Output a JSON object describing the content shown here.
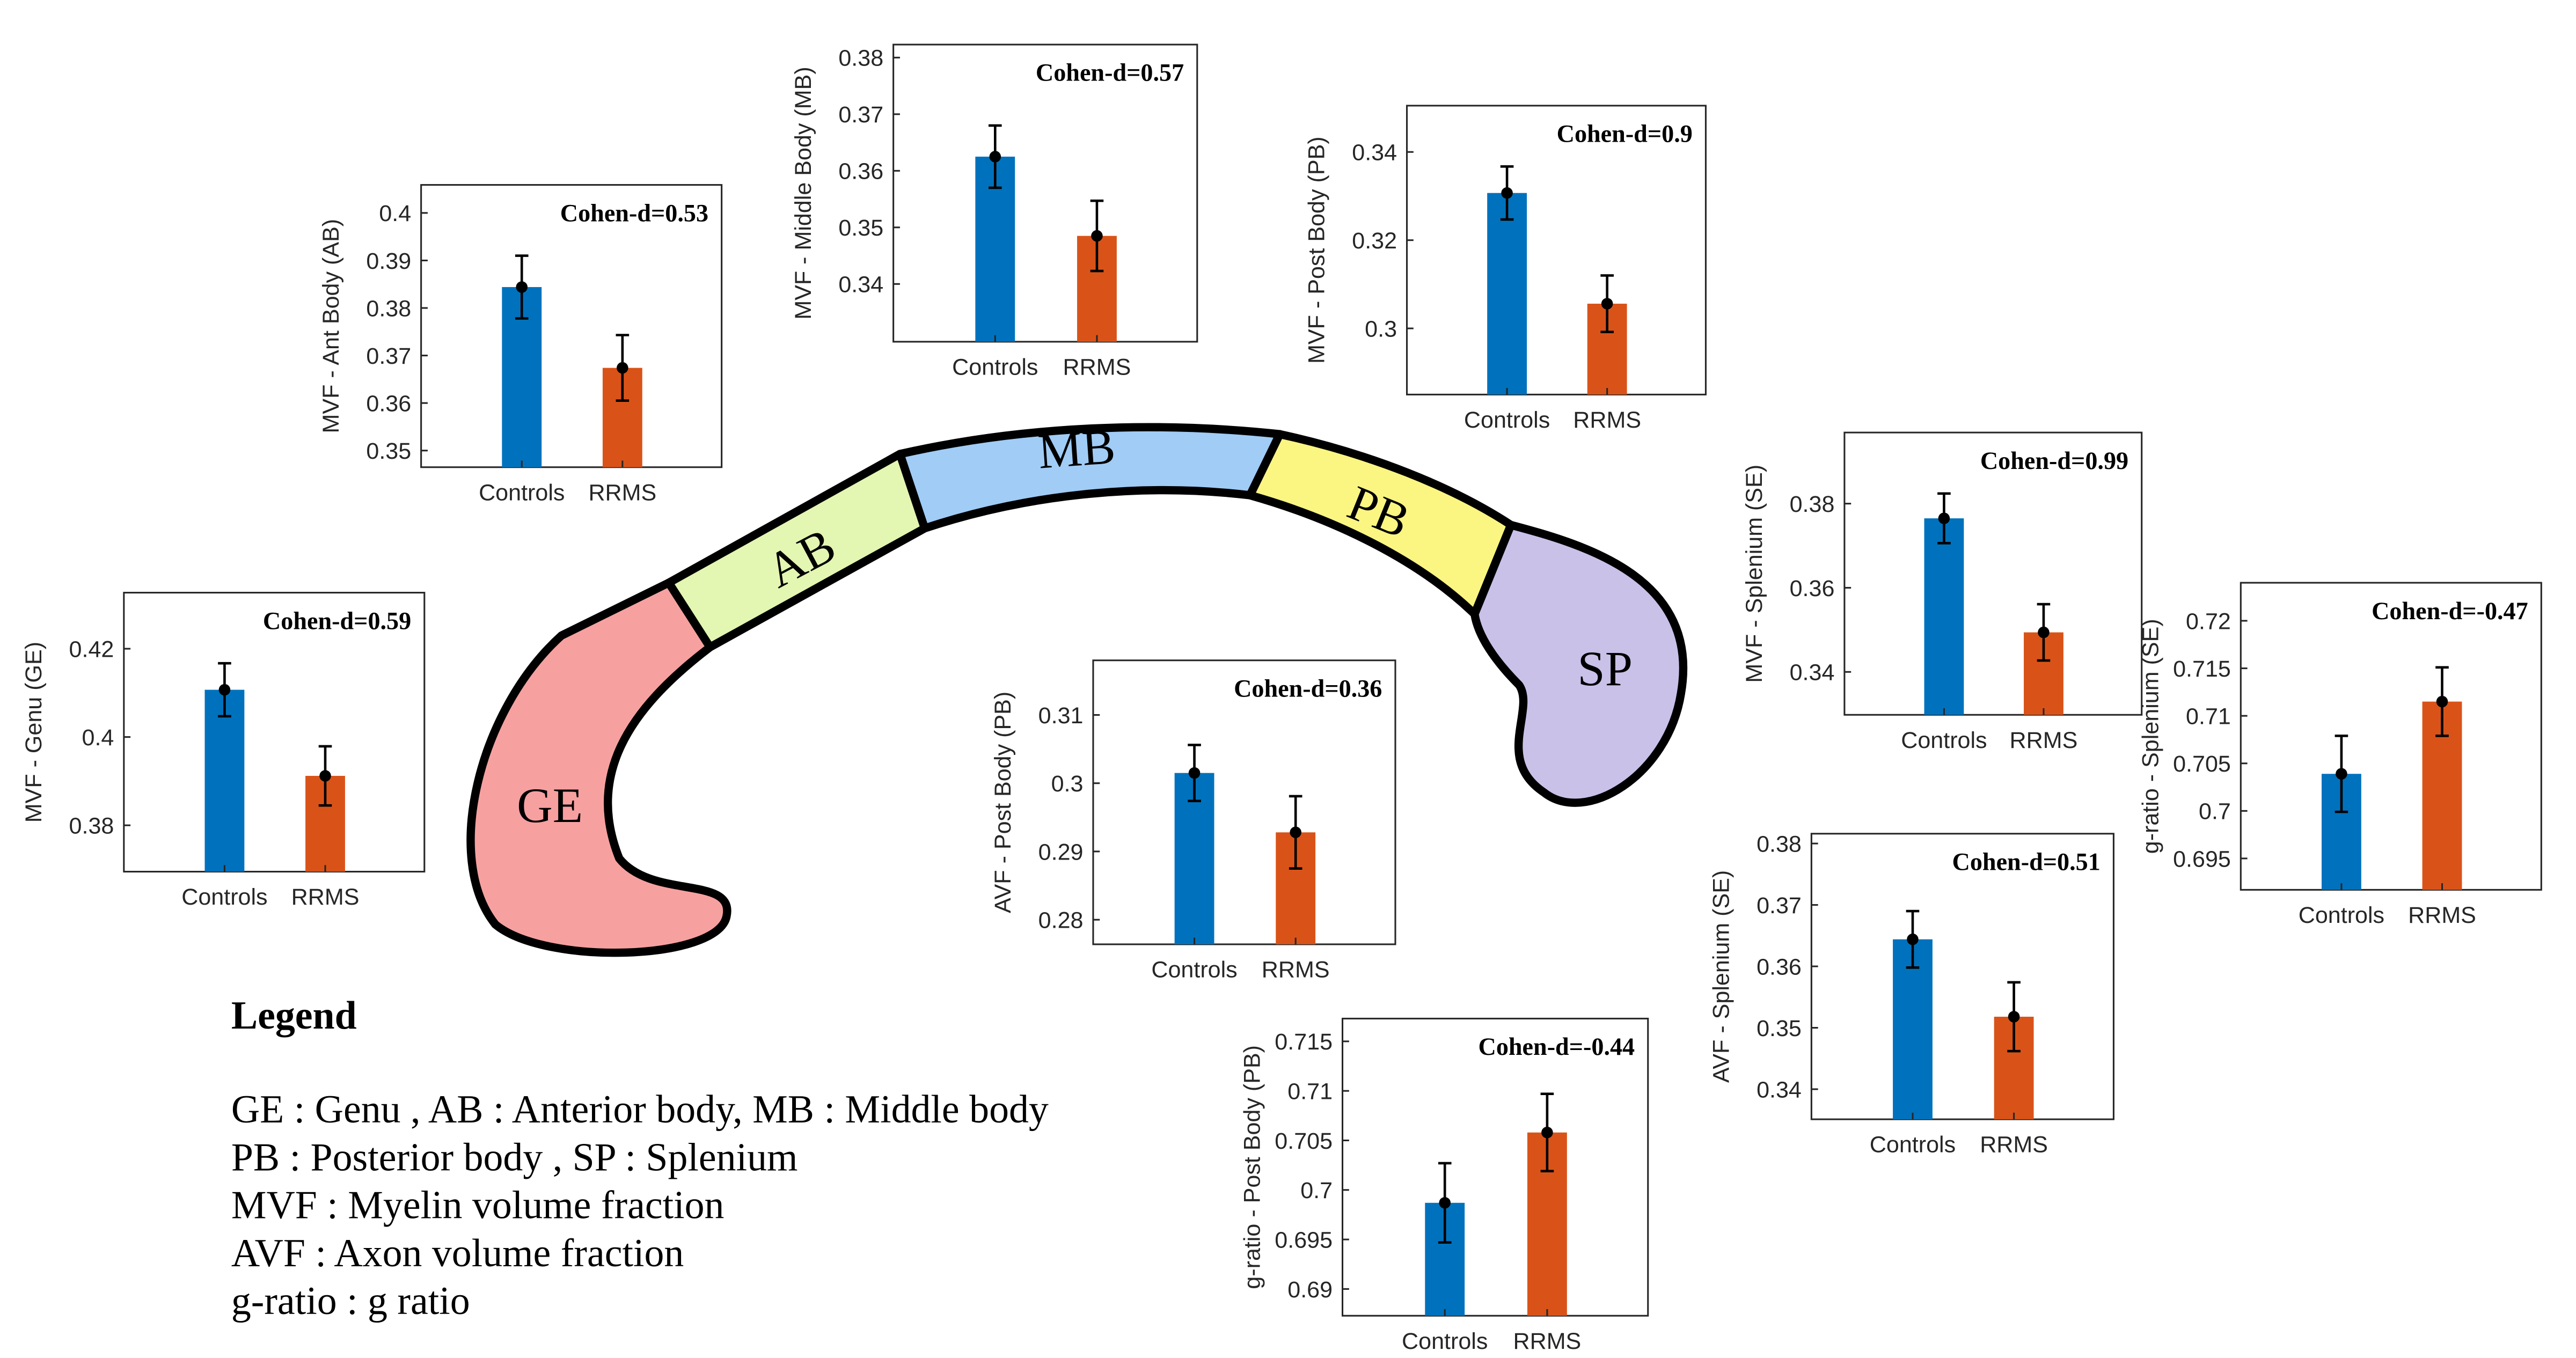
{
  "chart_data": [
    {
      "type": "bar",
      "ylabel": "MVF - Ant Body (AB)",
      "annotation": "Cohen-d=0.53",
      "categories": [
        "Controls",
        "RRMS"
      ],
      "values": [
        0.3844,
        0.3674
      ],
      "errors": [
        0.0066,
        0.0069
      ],
      "colors": [
        "#0072bd",
        "#d95319"
      ],
      "ylim": [
        0.3465,
        0.4059
      ],
      "yticks": [
        0.35,
        0.36,
        0.37,
        0.38,
        0.39,
        0.4
      ]
    },
    {
      "type": "bar",
      "ylabel": "MVF - Middle Body (MB)",
      "annotation": "Cohen-d=0.57",
      "categories": [
        "Controls",
        "RRMS"
      ],
      "values": [
        0.3625,
        0.3485
      ],
      "errors": [
        0.0055,
        0.0062
      ],
      "colors": [
        "#0072bd",
        "#d95319"
      ],
      "ylim": [
        0.3298,
        0.3823
      ],
      "yticks": [
        0.34,
        0.35,
        0.36,
        0.37,
        0.38
      ]
    },
    {
      "type": "bar",
      "ylabel": "MVF - Post Body (PB)",
      "annotation": "Cohen-d=0.9",
      "categories": [
        "Controls",
        "RRMS"
      ],
      "values": [
        0.3307,
        0.3056
      ],
      "errors": [
        0.006,
        0.0064
      ],
      "colors": [
        "#0072bd",
        "#d95319"
      ],
      "ylim": [
        0.285,
        0.3505
      ],
      "yticks": [
        0.3,
        0.32,
        0.34
      ]
    },
    {
      "type": "bar",
      "ylabel": "MVF - Genu (GE)",
      "annotation": "Cohen-d=0.59",
      "categories": [
        "Controls",
        "RRMS"
      ],
      "values": [
        0.4107,
        0.3912
      ],
      "errors": [
        0.006,
        0.0067
      ],
      "colors": [
        "#0072bd",
        "#d95319"
      ],
      "ylim": [
        0.3695,
        0.4327
      ],
      "yticks": [
        0.38,
        0.4,
        0.42
      ]
    },
    {
      "type": "bar",
      "ylabel": "AVF - Post Body (PB)",
      "annotation": "Cohen-d=0.36",
      "categories": [
        "Controls",
        "RRMS"
      ],
      "values": [
        0.3015,
        0.2928
      ],
      "errors": [
        0.0041,
        0.0053
      ],
      "colors": [
        "#0072bd",
        "#d95319"
      ],
      "ylim": [
        0.2764,
        0.318
      ],
      "yticks": [
        0.28,
        0.29,
        0.3,
        0.31
      ]
    },
    {
      "type": "bar",
      "ylabel": "MVF - Splenium (SE)",
      "annotation": "Cohen-d=0.99",
      "categories": [
        "Controls",
        "RRMS"
      ],
      "values": [
        0.3765,
        0.3494
      ],
      "errors": [
        0.0059,
        0.0067
      ],
      "colors": [
        "#0072bd",
        "#d95319"
      ],
      "ylim": [
        0.3298,
        0.3969
      ],
      "yticks": [
        0.34,
        0.36,
        0.38
      ]
    },
    {
      "type": "bar",
      "ylabel": "g-ratio - Splenium (SE)",
      "annotation": "Cohen-d=-0.47",
      "categories": [
        "Controls",
        "RRMS"
      ],
      "values": [
        0.7039,
        0.7115
      ],
      "errors": [
        0.004,
        0.0036
      ],
      "colors": [
        "#0072bd",
        "#d95319"
      ],
      "ylim": [
        0.6917,
        0.724
      ],
      "yticks": [
        0.695,
        0.7,
        0.705,
        0.71,
        0.715,
        0.72
      ]
    },
    {
      "type": "bar",
      "ylabel": "AVF - Splenium (SE)",
      "annotation": "Cohen-d=0.51",
      "categories": [
        "Controls",
        "RRMS"
      ],
      "values": [
        0.3644,
        0.3518
      ],
      "errors": [
        0.0046,
        0.0056
      ],
      "colors": [
        "#0072bd",
        "#d95319"
      ],
      "ylim": [
        0.3351,
        0.3816
      ],
      "yticks": [
        0.34,
        0.35,
        0.36,
        0.37,
        0.38
      ]
    },
    {
      "type": "bar",
      "ylabel": "g-ratio - Post Body (PB)",
      "annotation": "Cohen-d=-0.44",
      "categories": [
        "Controls",
        "RRMS"
      ],
      "values": [
        0.6987,
        0.7058
      ],
      "errors": [
        0.004,
        0.0039
      ],
      "colors": [
        "#0072bd",
        "#d95319"
      ],
      "ylim": [
        0.6873,
        0.7173
      ],
      "yticks": [
        0.69,
        0.695,
        0.7,
        0.705,
        0.71,
        0.715
      ]
    }
  ],
  "diagram": {
    "regions": [
      "GE",
      "AB",
      "MB",
      "PB",
      "SP"
    ]
  },
  "legend": {
    "title": "Legend",
    "lines": [
      "GE : Genu , AB : Anterior body, MB : Middle body",
      "PB : Posterior body , SP : Splenium",
      "MVF : Myelin volume fraction",
      "AVF  : Axon volume fraction",
      "g-ratio : g ratio"
    ]
  }
}
